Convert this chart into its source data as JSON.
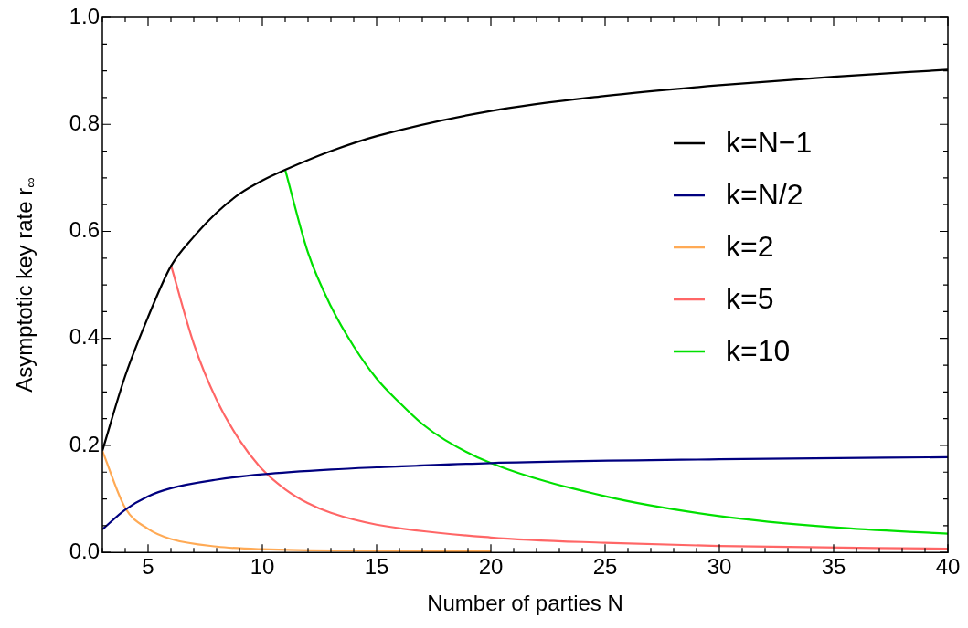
{
  "chart_data": {
    "type": "line",
    "xlabel": "Number of parties N",
    "ylabel": "Asymptotic key rate r$_{∞}$",
    "xlim": [
      3,
      40
    ],
    "ylim": [
      0,
      1
    ],
    "xticks": [
      {
        "value": 3,
        "label": null
      },
      {
        "value": 4,
        "label": null
      },
      5,
      {
        "value": 6,
        "label": null
      },
      {
        "value": 7,
        "label": null
      },
      {
        "value": 8,
        "label": null
      },
      {
        "value": 9,
        "label": null
      },
      10,
      {
        "value": 11,
        "label": null
      },
      {
        "value": 12,
        "label": null
      },
      {
        "value": 13,
        "label": null
      },
      {
        "value": 14,
        "label": null
      },
      15,
      {
        "value": 16,
        "label": null
      },
      {
        "value": 17,
        "label": null
      },
      {
        "value": 18,
        "label": null
      },
      {
        "value": 19,
        "label": null
      },
      20,
      {
        "value": 21,
        "label": null
      },
      {
        "value": 22,
        "label": null
      },
      {
        "value": 23,
        "label": null
      },
      {
        "value": 24,
        "label": null
      },
      25,
      {
        "value": 26,
        "label": null
      },
      {
        "value": 27,
        "label": null
      },
      {
        "value": 28,
        "label": null
      },
      {
        "value": 29,
        "label": null
      },
      30,
      {
        "value": 31,
        "label": null
      },
      {
        "value": 32,
        "label": null
      },
      {
        "value": 33,
        "label": null
      },
      {
        "value": 34,
        "label": null
      },
      35,
      {
        "value": 36,
        "label": null
      },
      {
        "value": 37,
        "label": null
      },
      {
        "value": 38,
        "label": null
      },
      {
        "value": 39,
        "label": null
      },
      40
    ],
    "yticks": [
      {
        "value": 0,
        "label": "0.0"
      },
      {
        "value": 0.05,
        "label": null
      },
      {
        "value": 0.1,
        "label": null
      },
      {
        "value": 0.15,
        "label": null
      },
      0.2,
      {
        "value": 0.25,
        "label": null
      },
      {
        "value": 0.3,
        "label": null
      },
      {
        "value": 0.35,
        "label": null
      },
      0.4,
      {
        "value": 0.45,
        "label": null
      },
      {
        "value": 0.5,
        "label": null
      },
      {
        "value": 0.55,
        "label": null
      },
      0.6,
      {
        "value": 0.65,
        "label": null
      },
      {
        "value": 0.7,
        "label": null
      },
      {
        "value": 0.75,
        "label": null
      },
      0.8,
      {
        "value": 0.85,
        "label": null
      },
      {
        "value": 0.9,
        "label": null
      },
      {
        "value": 0.95,
        "label": null
      },
      {
        "value": 1,
        "label": "1.0"
      }
    ],
    "legend": "top right",
    "marker": "none",
    "line_style": "solid",
    "series": [
      {
        "name": "k=N−1",
        "color": "#000000",
        "x": [
          3,
          4,
          5,
          6,
          7,
          8,
          9,
          10,
          11,
          13,
          15,
          20,
          25,
          30,
          35,
          40
        ],
        "values": [
          0.19,
          0.33,
          0.44,
          0.535,
          0.59,
          0.635,
          0.67,
          0.695,
          0.715,
          0.75,
          0.778,
          0.825,
          0.853,
          0.873,
          0.889,
          0.902
        ]
      },
      {
        "name": "k=N/2",
        "color": "#00007f",
        "x": [
          3,
          4,
          5,
          6,
          8,
          10,
          13,
          15,
          20,
          30,
          40
        ],
        "values": [
          0.043,
          0.08,
          0.105,
          0.12,
          0.136,
          0.146,
          0.155,
          0.159,
          0.167,
          0.174,
          0.178
        ]
      },
      {
        "name": "k=2",
        "color": "#ffaa55",
        "x": [
          3,
          4,
          5,
          6,
          8,
          10,
          15,
          20
        ],
        "values": [
          0.19,
          0.083,
          0.044,
          0.025,
          0.011,
          0.006,
          0.003,
          0.002
        ]
      },
      {
        "name": "k=5",
        "color": "#ff6666",
        "x": [
          6,
          7,
          8,
          9,
          10,
          11,
          12,
          13,
          15,
          20,
          25,
          30,
          40
        ],
        "values": [
          0.537,
          0.39,
          0.285,
          0.21,
          0.155,
          0.118,
          0.092,
          0.074,
          0.052,
          0.028,
          0.018,
          0.012,
          0.007
        ]
      },
      {
        "name": "k=10",
        "color": "#00e000",
        "x": [
          11,
          12,
          13,
          14,
          15,
          16,
          17,
          18,
          20,
          25,
          30,
          35,
          40
        ],
        "values": [
          0.715,
          0.56,
          0.46,
          0.385,
          0.325,
          0.28,
          0.24,
          0.21,
          0.167,
          0.105,
          0.068,
          0.047,
          0.035
        ]
      }
    ]
  }
}
